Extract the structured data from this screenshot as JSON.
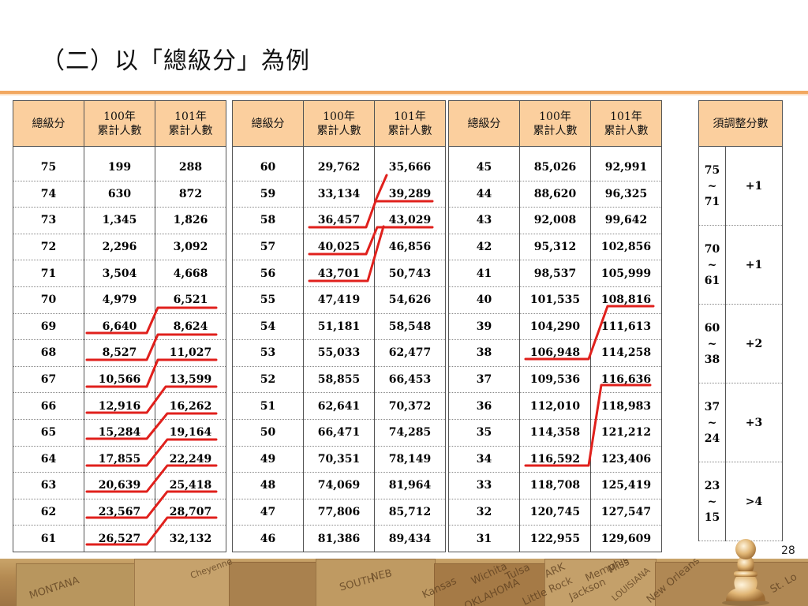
{
  "title": "（二）以「總級分」為例",
  "page_number": "28",
  "headers": {
    "score": "總級分",
    "y100": [
      "100年",
      "累計人數"
    ],
    "y101": [
      "101年",
      "累計人數"
    ],
    "adjust": "須調整分數"
  },
  "table1": [
    [
      "75",
      "199",
      "288"
    ],
    [
      "74",
      "630",
      "872"
    ],
    [
      "73",
      "1,345",
      "1,826"
    ],
    [
      "72",
      "2,296",
      "3,092"
    ],
    [
      "71",
      "3,504",
      "4,668"
    ],
    [
      "70",
      "4,979",
      "6,521"
    ],
    [
      "69",
      "6,640",
      "8,624"
    ],
    [
      "68",
      "8,527",
      "11,027"
    ],
    [
      "67",
      "10,566",
      "13,599"
    ],
    [
      "66",
      "12,916",
      "16,262"
    ],
    [
      "65",
      "15,284",
      "19,164"
    ],
    [
      "64",
      "17,855",
      "22,249"
    ],
    [
      "63",
      "20,639",
      "25,418"
    ],
    [
      "62",
      "23,567",
      "28,707"
    ],
    [
      "61",
      "26,527",
      "32,132"
    ]
  ],
  "table2": [
    [
      "60",
      "29,762",
      "35,666"
    ],
    [
      "59",
      "33,134",
      "39,289"
    ],
    [
      "58",
      "36,457",
      "43,029"
    ],
    [
      "57",
      "40,025",
      "46,856"
    ],
    [
      "56",
      "43,701",
      "50,743"
    ],
    [
      "55",
      "47,419",
      "54,626"
    ],
    [
      "54",
      "51,181",
      "58,548"
    ],
    [
      "53",
      "55,033",
      "62,477"
    ],
    [
      "52",
      "58,855",
      "66,453"
    ],
    [
      "51",
      "62,641",
      "70,372"
    ],
    [
      "50",
      "66,471",
      "74,285"
    ],
    [
      "49",
      "70,351",
      "78,149"
    ],
    [
      "48",
      "74,069",
      "81,964"
    ],
    [
      "47",
      "77,806",
      "85,712"
    ],
    [
      "46",
      "81,386",
      "89,434"
    ]
  ],
  "table3": [
    [
      "45",
      "85,026",
      "92,991"
    ],
    [
      "44",
      "88,620",
      "96,325"
    ],
    [
      "43",
      "92,008",
      "99,642"
    ],
    [
      "42",
      "95,312",
      "102,856"
    ],
    [
      "41",
      "98,537",
      "105,999"
    ],
    [
      "40",
      "101,535",
      "108,816"
    ],
    [
      "39",
      "104,290",
      "111,613"
    ],
    [
      "38",
      "106,948",
      "114,258"
    ],
    [
      "37",
      "109,536",
      "116,636"
    ],
    [
      "36",
      "112,010",
      "118,983"
    ],
    [
      "35",
      "114,358",
      "121,212"
    ],
    [
      "34",
      "116,592",
      "123,406"
    ],
    [
      "33",
      "118,708",
      "125,419"
    ],
    [
      "32",
      "120,745",
      "127,547"
    ],
    [
      "31",
      "122,955",
      "129,609"
    ]
  ],
  "adjust_rows": [
    {
      "range": [
        "75",
        "~",
        "71"
      ],
      "value": "+1"
    },
    {
      "range": [
        "70",
        "~",
        "61"
      ],
      "value": "+1"
    },
    {
      "range": [
        "60",
        "~",
        "38"
      ],
      "value": "+2"
    },
    {
      "range": [
        "37",
        "~",
        "24"
      ],
      "value": "+3"
    },
    {
      "range": [
        "23",
        "~",
        "15"
      ],
      "value": ">4"
    }
  ],
  "map_labels": [
    "MONTANA",
    "Cheyenne",
    "NEB",
    "Kansas",
    "Wichita",
    "Tulsa",
    "ARK",
    "Little Rock",
    "Jackson",
    "LOUISIANA",
    "New Orleans",
    "SOUTH",
    "OKLAHOMA",
    "Memphis",
    "Miss",
    "St. Lo"
  ],
  "colors": {
    "header_bg": "#fbcf9e",
    "rule": "#f2a860",
    "marker": "#e0201c"
  }
}
